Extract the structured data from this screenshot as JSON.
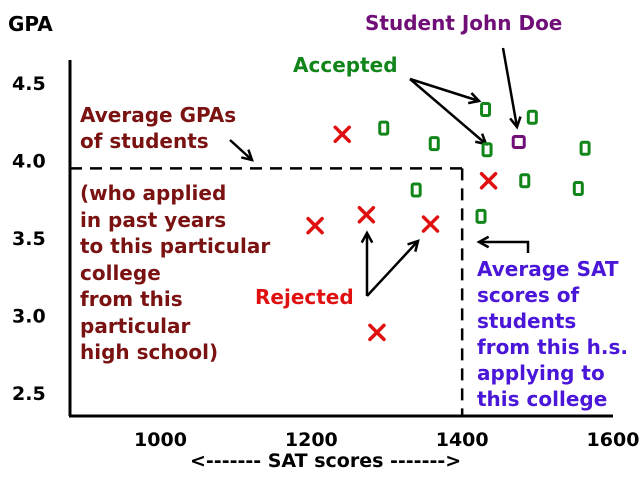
{
  "chart_data": {
    "type": "scatter",
    "title": "",
    "ylabel": "GPA",
    "xlabel": "<------- SAT scores ------->",
    "xlim": [
      880,
      1600
    ],
    "ylim": [
      2.35,
      4.65
    ],
    "xticks": [
      "1000",
      "1200",
      "1400",
      "1600"
    ],
    "xtick_values": [
      1000,
      1200,
      1400,
      1600
    ],
    "yticks": [
      "4.5",
      "4.0",
      "3.5",
      "3.0",
      "2.5"
    ],
    "ytick_values": [
      4.5,
      4.0,
      3.5,
      3.0,
      2.5
    ],
    "series": [
      {
        "name": "Accepted",
        "marker": "square",
        "color": "#11851a",
        "points": [
          [
            1296,
            4.21
          ],
          [
            1363,
            4.11
          ],
          [
            1339,
            3.81
          ],
          [
            1431,
            4.33
          ],
          [
            1433,
            4.07
          ],
          [
            1493,
            4.28
          ],
          [
            1483,
            3.87
          ],
          [
            1563,
            4.08
          ],
          [
            1554,
            3.82
          ],
          [
            1425,
            3.64
          ]
        ]
      },
      {
        "name": "Rejected",
        "marker": "x",
        "color": "#e01010",
        "points": [
          [
            1241,
            4.17
          ],
          [
            1435,
            3.87
          ],
          [
            1205,
            3.58
          ],
          [
            1273,
            3.65
          ],
          [
            1358,
            3.59
          ],
          [
            1287,
            2.89
          ]
        ]
      },
      {
        "name": "Student John Doe",
        "marker": "square",
        "color": "#6f0f77",
        "points": [
          [
            1475,
            4.12
          ]
        ]
      }
    ],
    "reference_lines": [
      {
        "orientation": "horizontal",
        "value": 3.95,
        "style": "dashed",
        "label": "Average GPAs of students"
      },
      {
        "orientation": "vertical",
        "value": 1400,
        "style": "dashed",
        "label": "Average SAT scores of students from this h.s. applying to this college"
      }
    ],
    "grid": false
  },
  "annotations": {
    "john_doe": "Student John Doe",
    "accepted": "Accepted",
    "rejected": "Rejected",
    "avg_gpa_lines": [
      "Average GPAs",
      "of students"
    ],
    "applied_note_lines": [
      "(who applied",
      "in past years",
      "to this particular",
      "college",
      "from this",
      "particular",
      "high school)"
    ],
    "avg_sat_lines": [
      "Average SAT",
      "scores of",
      "students",
      "from this h.s.",
      "applying to",
      "this college"
    ]
  },
  "colors": {
    "accepted": "#11851a",
    "rejected": "#e01010",
    "john_doe": "#6f0f77",
    "gpa_text": "#7a1212",
    "sat_text": "#4a16d8",
    "axes": "#000000"
  }
}
